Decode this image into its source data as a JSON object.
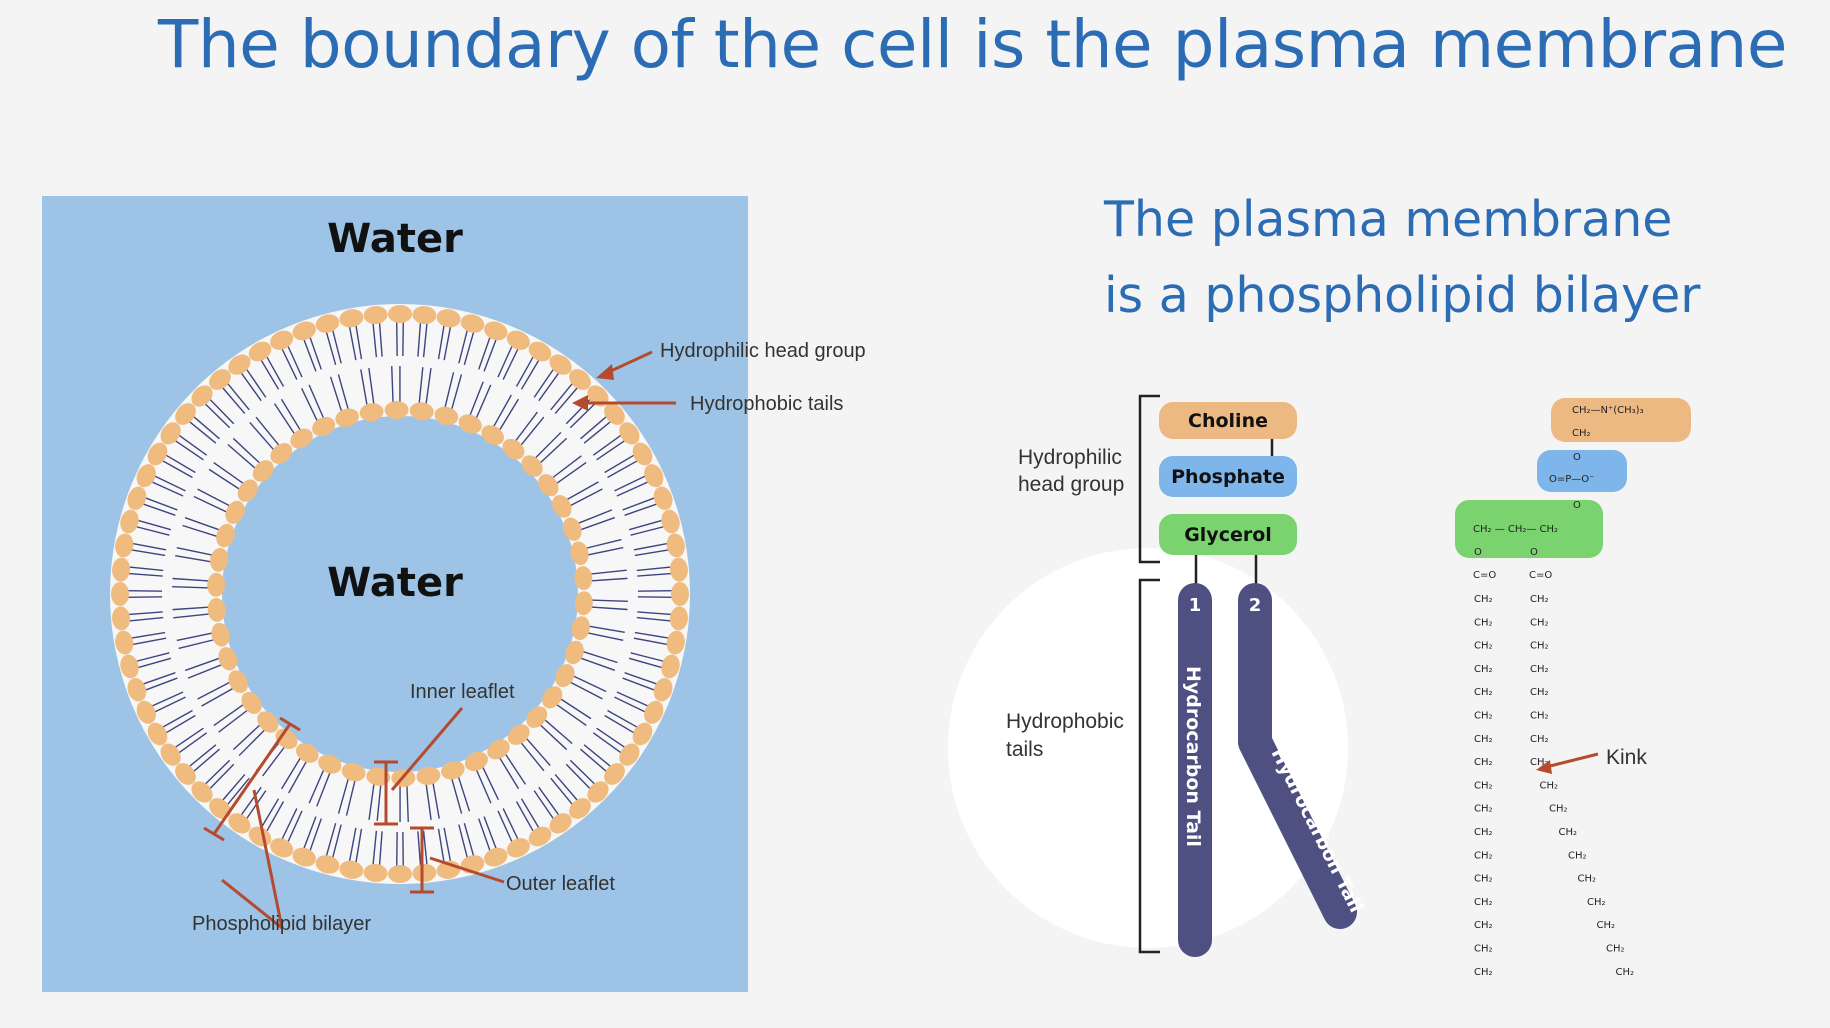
{
  "slide": {
    "title": "The boundary of the cell is the plasma membrane",
    "subtitle_line1": "The plasma membrane",
    "subtitle_line2": "is a phospholipid bilayer"
  },
  "liposome": {
    "water_outer": "Water",
    "water_inner": "Water",
    "hydrophilic_head_group": "Hydrophilic head group",
    "hydrophobic_tails": "Hydrophobic tails",
    "inner_leaflet": "Inner leaflet",
    "outer_leaflet": "Outer leaflet",
    "phospholipid_bilayer": "Phospholipid bilayer"
  },
  "phospholipid": {
    "choline": "Choline",
    "phosphate": "Phosphate",
    "glycerol": "Glycerol",
    "hydrophilic_label_line1": "Hydrophilic",
    "hydrophilic_label_line2": "head group",
    "hydrophobic_label_line1": "Hydrophobic",
    "hydrophobic_label_line2": "tails",
    "tail1_number": "1",
    "tail2_number": "2",
    "tail1_label": "Hydrocarbon Tail",
    "tail2_label": "Hydrocarbon Tail"
  },
  "structure": {
    "choline_formula_a": "CH₂—N⁺(CH₃)₃",
    "choline_formula_b": "CH₂",
    "phosphate_formula": "O=P—O⁻",
    "phosphate_o_top": "O",
    "phosphate_o_bottom": "O",
    "glycerol_formula": "CH₂ — CH₂— CH₂",
    "ester_o": "O",
    "carbonyl": "C=O",
    "chain_unit": "CH₂",
    "kink": "Kink"
  },
  "colors": {
    "title": "#2b6cb5",
    "water": "#9dc4e6",
    "head": "#efbb7f",
    "tail_line": "#3d4480",
    "choline_box": "#edb983",
    "phosphate_box": "#7eb5ea",
    "glycerol_box": "#7ad36f",
    "tail_fill": "#4d5080",
    "arrow": "#b54a2e"
  }
}
